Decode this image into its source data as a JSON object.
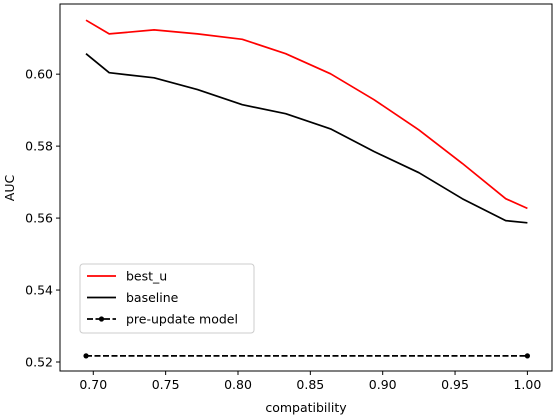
{
  "chart_data": {
    "type": "line",
    "xlabel": "compatibility",
    "ylabel": "AUC",
    "xlim": [
      0.677,
      1.017
    ],
    "ylim": [
      0.5175,
      0.6195
    ],
    "xticks": [
      0.7,
      0.75,
      0.8,
      0.85,
      0.9,
      0.95,
      1.0
    ],
    "xtick_labels": [
      "0.70",
      "0.75",
      "0.80",
      "0.85",
      "0.90",
      "0.95",
      "1.00"
    ],
    "yticks": [
      0.52,
      0.54,
      0.56,
      0.58,
      0.6
    ],
    "ytick_labels": [
      "0.52",
      "0.54",
      "0.56",
      "0.58",
      "0.60"
    ],
    "grid": false,
    "legend_position": "lower-left",
    "series": [
      {
        "name": "best_u",
        "color": "#ff0000",
        "style": "solid",
        "marker": "none",
        "x": [
          0.695,
          0.711,
          0.742,
          0.772,
          0.803,
          0.833,
          0.864,
          0.894,
          0.925,
          0.955,
          0.985,
          1.0
        ],
        "y": [
          0.615,
          0.6112,
          0.6123,
          0.6112,
          0.6097,
          0.6057,
          0.6001,
          0.5929,
          0.5845,
          0.5752,
          0.5654,
          0.5627
        ]
      },
      {
        "name": "baseline",
        "color": "#000000",
        "style": "solid",
        "marker": "none",
        "x": [
          0.695,
          0.711,
          0.742,
          0.772,
          0.803,
          0.833,
          0.864,
          0.894,
          0.925,
          0.955,
          0.985,
          1.0
        ],
        "y": [
          0.6057,
          0.6004,
          0.599,
          0.5957,
          0.5915,
          0.589,
          0.5848,
          0.5785,
          0.5726,
          0.5654,
          0.5593,
          0.5587
        ]
      },
      {
        "name": "pre-update model",
        "color": "#000000",
        "style": "dashed",
        "marker": "dot",
        "x": [
          0.695,
          1.0
        ],
        "y": [
          0.5217,
          0.5217
        ]
      }
    ]
  }
}
